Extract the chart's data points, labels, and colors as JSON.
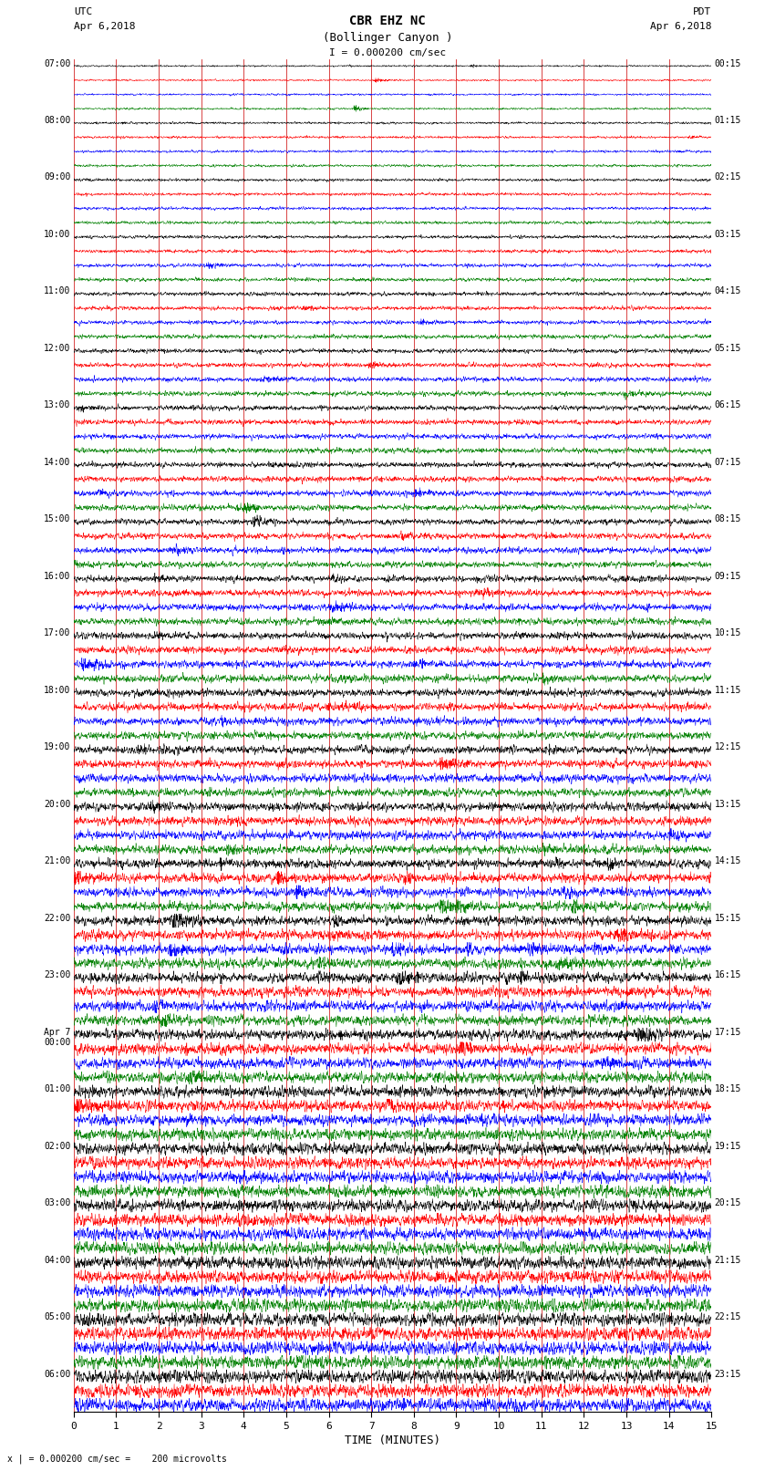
{
  "title_line1": "CBR EHZ NC",
  "title_line2": "(Bollinger Canyon )",
  "scale_label": "I = 0.000200 cm/sec",
  "left_header": "UTC",
  "left_date": "Apr 6,2018",
  "right_header": "PDT",
  "right_date": "Apr 6,2018",
  "xlabel": "TIME (MINUTES)",
  "bottom_note": "x | = 0.000200 cm/sec =    200 microvolts",
  "colors": [
    "black",
    "red",
    "blue",
    "green"
  ],
  "num_rows": 95,
  "xmin": 0,
  "xmax": 15,
  "background_color": "white",
  "grid_color": "#cc0000",
  "utc_list": [
    [
      0,
      "07:00"
    ],
    [
      4,
      "08:00"
    ],
    [
      8,
      "09:00"
    ],
    [
      12,
      "10:00"
    ],
    [
      16,
      "11:00"
    ],
    [
      20,
      "12:00"
    ],
    [
      24,
      "13:00"
    ],
    [
      28,
      "14:00"
    ],
    [
      32,
      "15:00"
    ],
    [
      36,
      "16:00"
    ],
    [
      40,
      "17:00"
    ],
    [
      44,
      "18:00"
    ],
    [
      48,
      "19:00"
    ],
    [
      52,
      "20:00"
    ],
    [
      56,
      "21:00"
    ],
    [
      60,
      "22:00"
    ],
    [
      64,
      "23:00"
    ],
    [
      68,
      "Apr 7\n00:00"
    ],
    [
      72,
      "01:00"
    ],
    [
      76,
      "02:00"
    ],
    [
      80,
      "03:00"
    ],
    [
      84,
      "04:00"
    ],
    [
      88,
      "05:00"
    ],
    [
      92,
      "06:00"
    ]
  ],
  "pdt_list": [
    [
      0,
      "00:15"
    ],
    [
      4,
      "01:15"
    ],
    [
      8,
      "02:15"
    ],
    [
      12,
      "03:15"
    ],
    [
      16,
      "04:15"
    ],
    [
      20,
      "05:15"
    ],
    [
      24,
      "06:15"
    ],
    [
      28,
      "07:15"
    ],
    [
      32,
      "08:15"
    ],
    [
      36,
      "09:15"
    ],
    [
      40,
      "10:15"
    ],
    [
      44,
      "11:15"
    ],
    [
      48,
      "12:15"
    ],
    [
      52,
      "13:15"
    ],
    [
      56,
      "14:15"
    ],
    [
      60,
      "15:15"
    ],
    [
      64,
      "16:15"
    ],
    [
      68,
      "17:15"
    ],
    [
      72,
      "18:15"
    ],
    [
      76,
      "19:15"
    ],
    [
      80,
      "20:15"
    ],
    [
      84,
      "21:15"
    ],
    [
      88,
      "22:15"
    ],
    [
      92,
      "23:15"
    ]
  ]
}
